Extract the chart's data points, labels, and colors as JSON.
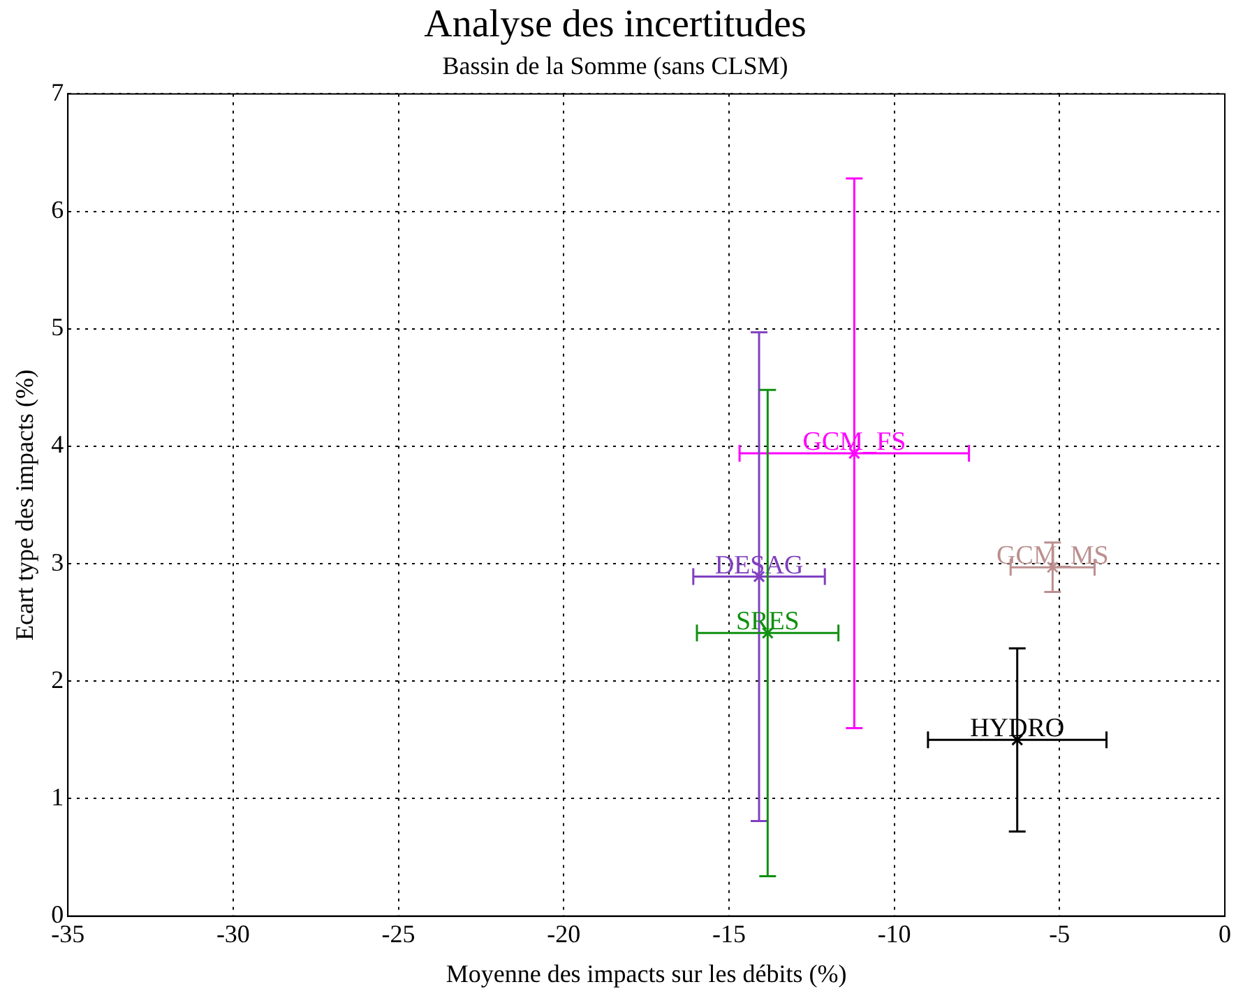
{
  "chart_data": {
    "type": "scatter",
    "title": "Analyse des incertitudes",
    "subtitle": "Bassin de la Somme (sans CLSM)",
    "xlabel": "Moyenne des impacts sur les débits (%)",
    "ylabel": "Ecart type des impacts (%)",
    "xlim": [
      -35,
      0
    ],
    "xticks": [
      -35,
      -30,
      -25,
      -20,
      -15,
      -10,
      -5,
      0
    ],
    "ylim": [
      0,
      7
    ],
    "yticks": [
      0,
      1,
      2,
      3,
      4,
      5,
      6,
      7
    ],
    "grid": true,
    "legend": false,
    "marker": "cross",
    "series": [
      {
        "name": "GCM_FS",
        "color": "#ff00ff",
        "x": [
          -11.21
        ],
        "values": [
          3.94
        ],
        "xerrors": [
          3.47
        ],
        "errors": [
          2.34
        ]
      },
      {
        "name": "DESAG",
        "color": "#8040c0",
        "x": [
          -14.09
        ],
        "values": [
          2.89
        ],
        "xerrors": [
          1.99
        ],
        "errors": [
          2.08
        ]
      },
      {
        "name": "SRES",
        "color": "#109010",
        "x": [
          -13.83
        ],
        "values": [
          2.41
        ],
        "xerrors": [
          2.14
        ],
        "errors": [
          2.07
        ]
      },
      {
        "name": "GCM_MS",
        "color": "#bc8f8f",
        "x": [
          -5.21
        ],
        "values": [
          2.97
        ],
        "xerrors": [
          1.27
        ],
        "errors": [
          0.21
        ]
      },
      {
        "name": "HYDRO",
        "color": "#000000",
        "x": [
          -6.28
        ],
        "values": [
          1.5
        ],
        "xerrors": [
          2.7
        ],
        "errors": [
          0.78
        ]
      }
    ]
  }
}
